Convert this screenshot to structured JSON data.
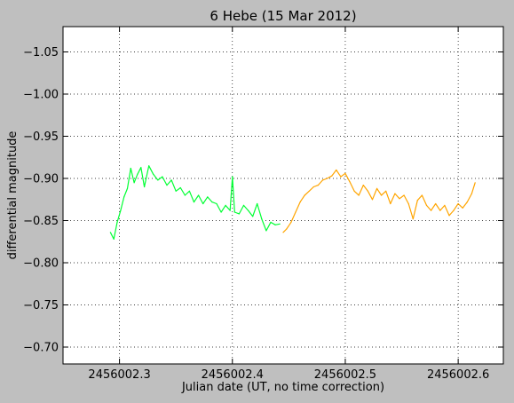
{
  "chart_data": {
    "type": "line",
    "title": "6 Hebe (15 Mar 2012)",
    "xlabel": "Julian date (UT, no time correction)",
    "ylabel": "differential magnitude",
    "xlim": [
      2456002.25,
      2456002.64
    ],
    "ylim": [
      -0.68,
      -1.08
    ],
    "y_inverted": true,
    "xticks": [
      2456002.3,
      2456002.4,
      2456002.5,
      2456002.6
    ],
    "xtick_labels": [
      "2456002.3",
      "2456002.4",
      "2456002.5",
      "2456002.6"
    ],
    "yticks": [
      -0.7,
      -0.75,
      -0.8,
      -0.85,
      -0.9,
      -0.95,
      -1.0,
      -1.05
    ],
    "ytick_labels": [
      "−0.70",
      "−0.75",
      "−0.80",
      "−0.85",
      "−0.90",
      "−0.95",
      "−1.00",
      "−1.05"
    ],
    "grid": true,
    "background": "#bfbfbf",
    "plot_background": "#ffffff",
    "series": [
      {
        "color": "#00ff33",
        "x": [
          2456002.292,
          2456002.295,
          2456002.298,
          2456002.301,
          2456002.304,
          2456002.307,
          2456002.31,
          2456002.313,
          2456002.316,
          2456002.319,
          2456002.322,
          2456002.326,
          2456002.33,
          2456002.334,
          2456002.338,
          2456002.342,
          2456002.346,
          2456002.35,
          2456002.354,
          2456002.358,
          2456002.362,
          2456002.366,
          2456002.37,
          2456002.374,
          2456002.378,
          2456002.382,
          2456002.386,
          2456002.39,
          2456002.394,
          2456002.398,
          2456002.4,
          2456002.402,
          2456002.406,
          2456002.41,
          2456002.414,
          2456002.418,
          2456002.422,
          2456002.426,
          2456002.43,
          2456002.434,
          2456002.438,
          2456002.442
        ],
        "y": [
          -0.836,
          -0.828,
          -0.848,
          -0.862,
          -0.878,
          -0.888,
          -0.912,
          -0.895,
          -0.905,
          -0.913,
          -0.89,
          -0.915,
          -0.905,
          -0.898,
          -0.902,
          -0.892,
          -0.898,
          -0.885,
          -0.889,
          -0.88,
          -0.885,
          -0.872,
          -0.88,
          -0.87,
          -0.878,
          -0.872,
          -0.87,
          -0.86,
          -0.868,
          -0.862,
          -0.902,
          -0.86,
          -0.858,
          -0.868,
          -0.862,
          -0.855,
          -0.87,
          -0.852,
          -0.838,
          -0.848,
          -0.845,
          -0.846
        ]
      },
      {
        "color": "#ffa500",
        "x": [
          2456002.445,
          2456002.448,
          2456002.452,
          2456002.456,
          2456002.46,
          2456002.464,
          2456002.468,
          2456002.472,
          2456002.476,
          2456002.48,
          2456002.484,
          2456002.488,
          2456002.492,
          2456002.496,
          2456002.5,
          2456002.504,
          2456002.508,
          2456002.512,
          2456002.516,
          2456002.52,
          2456002.524,
          2456002.528,
          2456002.532,
          2456002.536,
          2456002.54,
          2456002.544,
          2456002.548,
          2456002.552,
          2456002.556,
          2456002.56,
          2456002.564,
          2456002.568,
          2456002.572,
          2456002.576,
          2456002.58,
          2456002.584,
          2456002.588,
          2456002.592,
          2456002.596,
          2456002.6,
          2456002.604,
          2456002.608,
          2456002.612,
          2456002.615
        ],
        "y": [
          -0.836,
          -0.84,
          -0.848,
          -0.86,
          -0.872,
          -0.88,
          -0.885,
          -0.89,
          -0.892,
          -0.898,
          -0.9,
          -0.903,
          -0.91,
          -0.902,
          -0.906,
          -0.896,
          -0.885,
          -0.88,
          -0.892,
          -0.885,
          -0.875,
          -0.888,
          -0.88,
          -0.885,
          -0.87,
          -0.882,
          -0.876,
          -0.88,
          -0.87,
          -0.852,
          -0.874,
          -0.88,
          -0.868,
          -0.862,
          -0.87,
          -0.862,
          -0.868,
          -0.856,
          -0.862,
          -0.87,
          -0.865,
          -0.872,
          -0.882,
          -0.895
        ]
      }
    ]
  }
}
